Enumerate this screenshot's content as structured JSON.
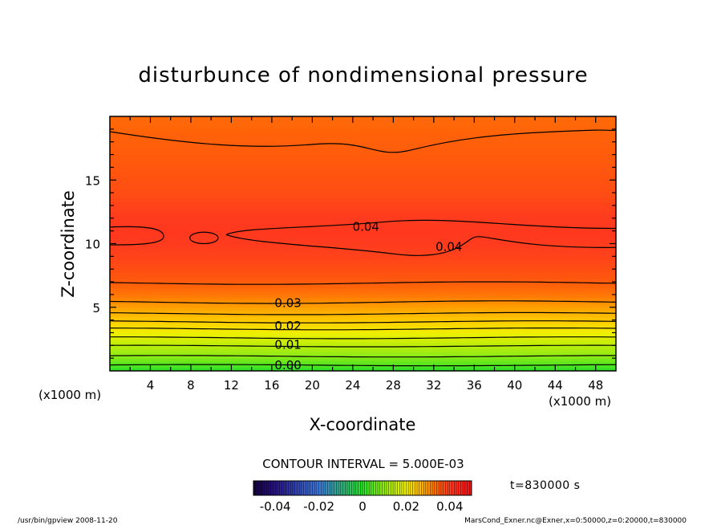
{
  "chart_data": {
    "type": "heatmap",
    "title": "disturbunce of nondimensional pressure",
    "xlabel": "X-coordinate",
    "ylabel": "Z-coordinate",
    "x_unit_left": "(x1000 m)",
    "x_unit_right": "(x1000 m)",
    "xlim": [
      0,
      50
    ],
    "ylim": [
      0,
      20
    ],
    "xticks": [
      4,
      8,
      12,
      16,
      20,
      24,
      28,
      32,
      36,
      40,
      44,
      48
    ],
    "yticks": [
      5,
      10,
      15
    ],
    "contour_interval_text": "CONTOUR INTERVAL = 5.000E-03",
    "time_text": "t=830000  s",
    "colorbar": {
      "range": [
        -0.05,
        0.05
      ],
      "tick_values": [
        -0.04,
        -0.02,
        0,
        0.02,
        0.04
      ],
      "tick_labels": [
        "-0.04",
        "-0.02",
        "0",
        "0.02",
        "0.04"
      ]
    },
    "contour_labels": [
      {
        "text": "0.04",
        "x": 25.3,
        "z": 11.4
      },
      {
        "text": "0.04",
        "x": 33.5,
        "z": 9.8
      },
      {
        "text": "0.03",
        "x": 17.6,
        "z": 5.4
      },
      {
        "text": "0.02",
        "x": 17.6,
        "z": 3.6
      },
      {
        "text": "0.01",
        "x": 17.6,
        "z": 2.1
      },
      {
        "text": "0.00",
        "x": 17.6,
        "z": 0.5
      }
    ],
    "profile_z": [
      0,
      1,
      2,
      3,
      4,
      5,
      6,
      7,
      8,
      9,
      10,
      11,
      12,
      13,
      14,
      15,
      16,
      17,
      18,
      19,
      20
    ],
    "profile_value": [
      0.0,
      0.008,
      0.014,
      0.02,
      0.025,
      0.029,
      0.033,
      0.0355,
      0.0375,
      0.039,
      0.0402,
      0.041,
      0.0402,
      0.039,
      0.0375,
      0.037,
      0.036,
      0.0355,
      0.035,
      0.0345,
      0.034
    ]
  },
  "footer": {
    "left": "/usr/bin/gpview   2008-11-20",
    "right": "MarsCond_Exner.nc@Exner,x=0:50000,z=0:20000,t=830000"
  },
  "colors": {
    "field_top": "#ff4a1e",
    "field_bottom": "#28e028",
    "contour": "#000000"
  }
}
